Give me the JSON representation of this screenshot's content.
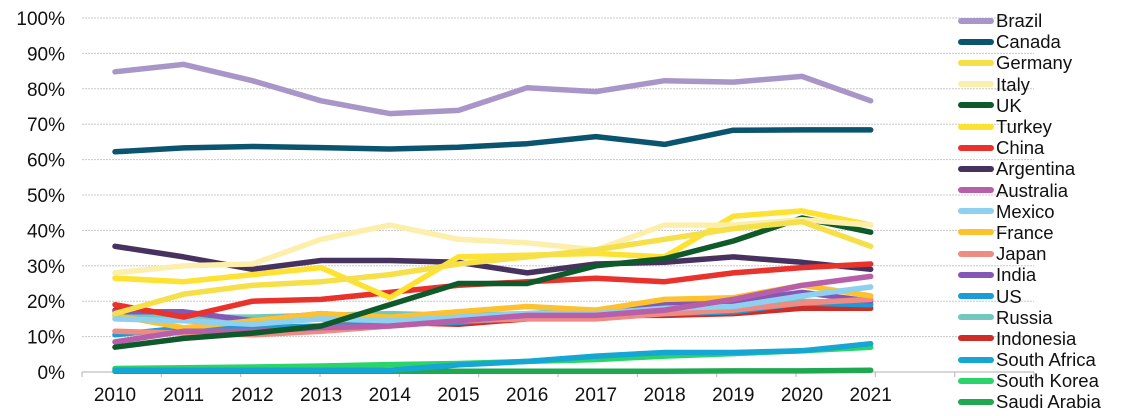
{
  "chart_data": {
    "type": "line",
    "title": "",
    "xlabel": "",
    "ylabel": "",
    "x": [
      "2010",
      "2011",
      "2012",
      "2013",
      "2014",
      "2015",
      "2016",
      "2017",
      "2018",
      "2019",
      "2020",
      "2021"
    ],
    "ylim": [
      0,
      100
    ],
    "yticks": [
      "0%",
      "10%",
      "20%",
      "30%",
      "40%",
      "50%",
      "60%",
      "70%",
      "80%",
      "90%",
      "100%"
    ],
    "grid": true,
    "legend_position": "right",
    "series": [
      {
        "name": "Brazil",
        "color": "#a996c9",
        "values": [
          84.8,
          86.9,
          82.3,
          76.6,
          73.0,
          73.9,
          80.3,
          79.2,
          82.3,
          81.9,
          83.5,
          76.6
        ]
      },
      {
        "name": "Canada",
        "color": "#0b5470",
        "values": [
          62.2,
          63.3,
          63.7,
          63.4,
          63.0,
          63.5,
          64.5,
          66.5,
          64.3,
          68.3,
          68.4,
          68.4
        ]
      },
      {
        "name": "Germany",
        "color": "#f5e04a",
        "values": [
          16.5,
          22.0,
          24.5,
          25.5,
          27.5,
          30.5,
          32.5,
          34.5,
          37.5,
          40.5,
          42.5,
          35.5
        ]
      },
      {
        "name": "Italy",
        "color": "#fcefac",
        "values": [
          28.0,
          30.0,
          30.5,
          37.5,
          41.5,
          37.5,
          36.5,
          34.5,
          41.5,
          41.5,
          43.0,
          41.5
        ]
      },
      {
        "name": "UK",
        "color": "#0f5a2a",
        "values": [
          7.0,
          9.5,
          11.0,
          13.0,
          19.0,
          25.0,
          25.0,
          30.0,
          32.0,
          37.0,
          43.5,
          39.5
        ]
      },
      {
        "name": "Turkey",
        "color": "#fde232",
        "values": [
          26.5,
          25.5,
          27.5,
          29.5,
          21.0,
          32.5,
          33.0,
          33.5,
          32.5,
          44.0,
          45.5,
          41.5
        ]
      },
      {
        "name": "China",
        "color": "#e8322b",
        "values": [
          19.0,
          15.5,
          20.0,
          20.5,
          22.5,
          24.5,
          25.5,
          26.5,
          25.5,
          28.0,
          29.5,
          30.5
        ]
      },
      {
        "name": "Argentina",
        "color": "#47325f",
        "values": [
          35.5,
          32.5,
          29.0,
          31.5,
          31.5,
          31.0,
          28.0,
          30.5,
          31.0,
          32.5,
          31.0,
          29.0
        ]
      },
      {
        "name": "Australia",
        "color": "#b85fa9",
        "values": [
          8.5,
          11.5,
          11.5,
          12.5,
          13.0,
          14.5,
          16.0,
          16.0,
          17.5,
          20.5,
          24.5,
          27.0
        ]
      },
      {
        "name": "Mexico",
        "color": "#8dd0f0",
        "values": [
          15.0,
          14.5,
          13.5,
          15.0,
          14.5,
          15.5,
          16.5,
          16.5,
          18.0,
          18.5,
          21.5,
          24.0
        ]
      },
      {
        "name": "France",
        "color": "#fcc22f",
        "values": [
          16.0,
          12.5,
          14.5,
          16.5,
          15.5,
          17.0,
          18.5,
          17.5,
          20.5,
          21.0,
          24.5,
          21.5
        ]
      },
      {
        "name": "Japan",
        "color": "#ee8b83",
        "values": [
          11.5,
          11.0,
          10.5,
          11.5,
          13.0,
          14.5,
          15.0,
          15.0,
          16.5,
          17.5,
          19.5,
          20.5
        ]
      },
      {
        "name": "India",
        "color": "#8458b5",
        "values": [
          17.0,
          17.0,
          14.5,
          16.5,
          15.0,
          15.0,
          16.0,
          17.0,
          19.5,
          20.0,
          22.5,
          20.0
        ]
      },
      {
        "name": "US",
        "color": "#1b9cd8",
        "values": [
          10.5,
          12.5,
          12.5,
          13.0,
          13.5,
          14.0,
          15.5,
          16.5,
          16.5,
          17.0,
          19.5,
          19.0
        ]
      },
      {
        "name": "Russia",
        "color": "#72c8bf",
        "values": [
          16.0,
          15.5,
          15.5,
          16.0,
          16.5,
          16.0,
          16.5,
          17.5,
          17.0,
          18.5,
          20.0,
          19.5
        ]
      },
      {
        "name": "Indonesia",
        "color": "#d02c26",
        "values": [
          17.5,
          15.5,
          15.0,
          15.0,
          14.0,
          13.5,
          15.0,
          16.0,
          16.0,
          16.5,
          18.0,
          18.0
        ]
      },
      {
        "name": "South Africa",
        "color": "#16a6d3",
        "values": [
          0.5,
          0.5,
          0.5,
          0.5,
          0.5,
          2.0,
          3.0,
          4.5,
          5.5,
          5.5,
          6.0,
          8.0
        ]
      },
      {
        "name": "South Korea",
        "color": "#2bd46a",
        "values": [
          1.0,
          1.2,
          1.4,
          1.7,
          2.1,
          2.4,
          3.0,
          3.5,
          4.5,
          5.2,
          6.0,
          7.0
        ]
      },
      {
        "name": "Saudi Arabia",
        "color": "#1fa84f",
        "values": [
          0.2,
          0.2,
          0.2,
          0.2,
          0.2,
          0.2,
          0.2,
          0.2,
          0.2,
          0.3,
          0.3,
          0.5
        ]
      }
    ]
  }
}
